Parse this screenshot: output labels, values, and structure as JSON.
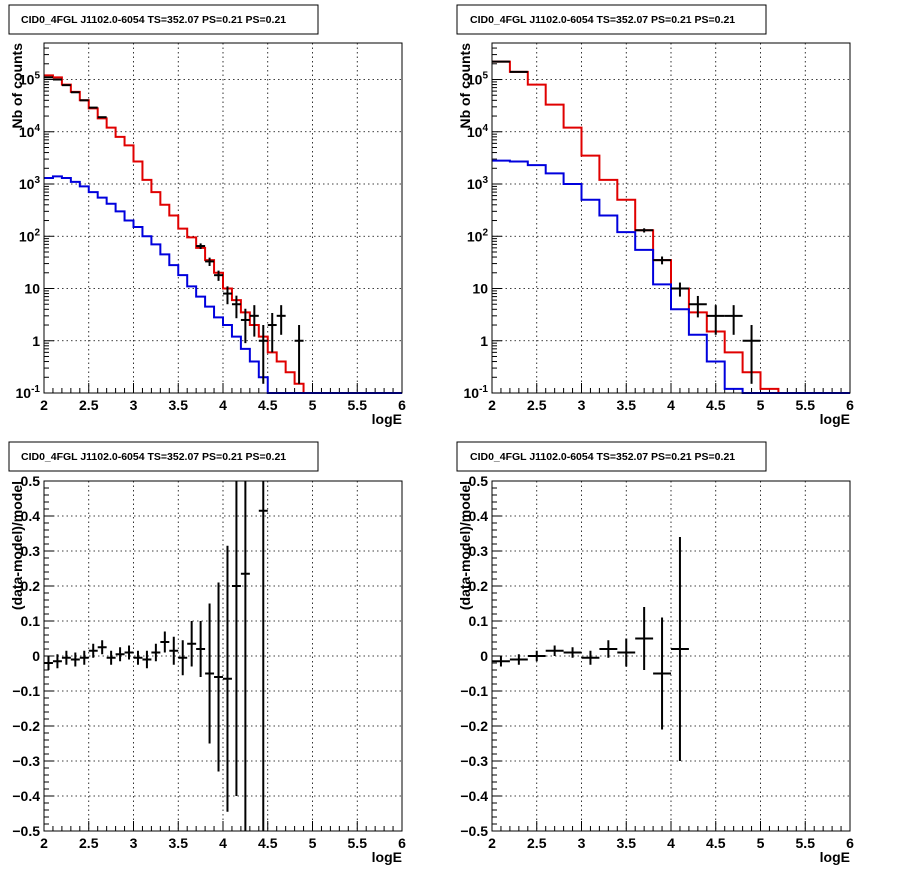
{
  "colors": {
    "data": "#000000",
    "total_model": "#e00000",
    "source_model": "#0000dd"
  },
  "chart_data": [
    {
      "type": "line",
      "id": "counts-fine",
      "title": "CID0_4FGL J1102.0-6054 TS=352.07 PS=0.21 PS=0.21",
      "xlabel": "logE",
      "ylabel": "Nb of counts",
      "xlim": [
        2,
        6
      ],
      "ylim": [
        0.1,
        500000
      ],
      "ylog": true,
      "grid": true,
      "x_ticks": [
        "2",
        "2.5",
        "3",
        "3.5",
        "4",
        "4.5",
        "5",
        "5.5",
        "6"
      ],
      "y_ticks": [
        {
          "v": 0.1,
          "label": "10",
          "exp": "-1"
        },
        {
          "v": 1,
          "label": "1",
          "exp": ""
        },
        {
          "v": 10,
          "label": "10",
          "exp": ""
        },
        {
          "v": 100,
          "label": "10",
          "exp": "2"
        },
        {
          "v": 1000,
          "label": "10",
          "exp": "3"
        },
        {
          "v": 10000,
          "label": "10",
          "exp": "4"
        },
        {
          "v": 100000,
          "label": "10",
          "exp": "5"
        }
      ],
      "bin_edges": [
        2.0,
        2.1,
        2.2,
        2.3,
        2.4,
        2.5,
        2.6,
        2.7,
        2.8,
        2.9,
        3.0,
        3.1,
        3.2,
        3.3,
        3.4,
        3.5,
        3.6,
        3.7,
        3.8,
        3.9,
        4.0,
        4.1,
        4.2,
        4.3,
        4.4,
        4.5,
        4.6,
        4.7,
        4.8,
        4.9,
        5.0,
        5.1,
        5.2,
        5.3,
        5.4,
        5.5,
        5.6,
        5.7,
        5.8,
        5.9,
        6.0
      ],
      "series": [
        {
          "name": "total model",
          "color": "#e00000",
          "values": [
            120000,
            110000,
            80000,
            58000,
            40000,
            28000,
            18000,
            12000,
            8000,
            5500,
            2700,
            1200,
            700,
            400,
            250,
            140,
            95,
            60,
            35,
            20,
            10,
            6,
            3.5,
            2,
            1.2,
            0.6,
            0.4,
            0.25,
            0.15,
            0.1,
            0.1,
            0.1,
            0.1,
            0.1,
            0.1,
            0.1,
            0.1,
            0.1,
            0.1,
            0.1
          ]
        },
        {
          "name": "source model",
          "color": "#0000dd",
          "values": [
            1300,
            1400,
            1300,
            1100,
            900,
            700,
            550,
            420,
            300,
            200,
            150,
            100,
            70,
            45,
            28,
            18,
            11,
            7,
            4.5,
            2.8,
            2,
            1.2,
            0.7,
            0.4,
            0.2,
            0.1,
            0.1,
            0.1,
            0.1,
            0.1,
            0.1,
            0.1,
            0.1,
            0.1,
            0.1,
            0.1,
            0.1,
            0.1,
            0.1,
            0.1
          ]
        }
      ],
      "points": [
        {
          "x": 2.05,
          "y": 110000,
          "dy_lo": 330,
          "dy_hi": 330,
          "dx": 0.05
        },
        {
          "x": 2.15,
          "y": 100000,
          "dy_lo": 320,
          "dy_hi": 320,
          "dx": 0.05
        },
        {
          "x": 2.25,
          "y": 78000,
          "dy_lo": 280,
          "dy_hi": 280,
          "dx": 0.05
        },
        {
          "x": 2.35,
          "y": 57000,
          "dy_lo": 240,
          "dy_hi": 240,
          "dx": 0.05
        },
        {
          "x": 2.45,
          "y": 40000,
          "dy_lo": 200,
          "dy_hi": 200,
          "dx": 0.05
        },
        {
          "x": 2.55,
          "y": 29000,
          "dy_lo": 170,
          "dy_hi": 170,
          "dx": 0.05
        },
        {
          "x": 2.65,
          "y": 19000,
          "dy_lo": 140,
          "dy_hi": 140,
          "dx": 0.05
        },
        {
          "x": 3.75,
          "y": 65,
          "dy_lo": 8,
          "dy_hi": 8,
          "dx": 0.05
        },
        {
          "x": 3.85,
          "y": 33,
          "dy_lo": 6,
          "dy_hi": 6,
          "dx": 0.05
        },
        {
          "x": 3.95,
          "y": 18,
          "dy_lo": 4,
          "dy_hi": 4,
          "dx": 0.05
        },
        {
          "x": 4.05,
          "y": 8,
          "dy_lo": 3,
          "dy_hi": 3,
          "dx": 0.05
        },
        {
          "x": 4.15,
          "y": 5,
          "dy_lo": 2.3,
          "dy_hi": 2.3,
          "dx": 0.05
        },
        {
          "x": 4.25,
          "y": 2.5,
          "dy_lo": 1.6,
          "dy_hi": 1.6,
          "dx": 0.05
        },
        {
          "x": 4.35,
          "y": 3,
          "dy_lo": 1.8,
          "dy_hi": 1.8,
          "dx": 0.05
        },
        {
          "x": 4.45,
          "y": 1,
          "dy_lo": 0.85,
          "dy_hi": 1.0,
          "dx": 0.05
        },
        {
          "x": 4.55,
          "y": 2,
          "dy_lo": 1.4,
          "dy_hi": 1.4,
          "dx": 0.05
        },
        {
          "x": 4.65,
          "y": 3,
          "dy_lo": 1.7,
          "dy_hi": 1.8,
          "dx": 0.05
        },
        {
          "x": 4.85,
          "y": 1,
          "dy_lo": 0.85,
          "dy_hi": 1.0,
          "dx": 0.05
        }
      ]
    },
    {
      "type": "line",
      "id": "counts-coarse",
      "title": "CID0_4FGL J1102.0-6054 TS=352.07 PS=0.21 PS=0.21",
      "xlabel": "logE",
      "ylabel": "Nb of counts",
      "xlim": [
        2,
        6
      ],
      "ylim": [
        0.1,
        500000
      ],
      "ylog": true,
      "grid": true,
      "x_ticks": [
        "2",
        "2.5",
        "3",
        "3.5",
        "4",
        "4.5",
        "5",
        "5.5",
        "6"
      ],
      "y_ticks": [
        {
          "v": 0.1,
          "label": "10",
          "exp": "-1"
        },
        {
          "v": 1,
          "label": "1",
          "exp": ""
        },
        {
          "v": 10,
          "label": "10",
          "exp": ""
        },
        {
          "v": 100,
          "label": "10",
          "exp": "2"
        },
        {
          "v": 1000,
          "label": "10",
          "exp": "3"
        },
        {
          "v": 10000,
          "label": "10",
          "exp": "4"
        },
        {
          "v": 100000,
          "label": "10",
          "exp": "5"
        }
      ],
      "bin_edges": [
        2.0,
        2.2,
        2.4,
        2.6,
        2.8,
        3.0,
        3.2,
        3.4,
        3.6,
        3.8,
        4.0,
        4.2,
        4.4,
        4.6,
        4.8,
        5.0,
        5.2,
        5.4,
        5.6,
        5.8,
        6.0
      ],
      "series": [
        {
          "name": "total model",
          "color": "#e00000",
          "values": [
            220000,
            140000,
            80000,
            33000,
            12000,
            3500,
            1200,
            500,
            130,
            35,
            10,
            3.5,
            1.5,
            0.6,
            0.25,
            0.12,
            0.1,
            0.1,
            0.1,
            0.1
          ]
        },
        {
          "name": "source model",
          "color": "#0000dd",
          "values": [
            2800,
            2700,
            2300,
            1600,
            1000,
            500,
            250,
            120,
            55,
            12,
            4,
            1.3,
            0.4,
            0.12,
            0.1,
            0.1,
            0.1,
            0.1,
            0.1,
            0.1
          ]
        }
      ],
      "points": [
        {
          "x": 2.1,
          "y": 220000,
          "dy_lo": 470,
          "dy_hi": 470,
          "dx": 0.1
        },
        {
          "x": 2.3,
          "y": 140000,
          "dy_lo": 370,
          "dy_hi": 370,
          "dx": 0.1
        },
        {
          "x": 3.7,
          "y": 130,
          "dy_lo": 12,
          "dy_hi": 12,
          "dx": 0.1
        },
        {
          "x": 3.9,
          "y": 35,
          "dy_lo": 6,
          "dy_hi": 6,
          "dx": 0.1
        },
        {
          "x": 4.1,
          "y": 10,
          "dy_lo": 3,
          "dy_hi": 3,
          "dx": 0.1
        },
        {
          "x": 4.3,
          "y": 5,
          "dy_lo": 2.2,
          "dy_hi": 2.2,
          "dx": 0.1
        },
        {
          "x": 4.5,
          "y": 3,
          "dy_lo": 1.7,
          "dy_hi": 1.8,
          "dx": 0.1
        },
        {
          "x": 4.7,
          "y": 3,
          "dy_lo": 1.7,
          "dy_hi": 1.8,
          "dx": 0.1
        },
        {
          "x": 4.9,
          "y": 1,
          "dy_lo": 0.85,
          "dy_hi": 1.0,
          "dx": 0.1
        }
      ]
    },
    {
      "type": "scatter",
      "id": "residual-fine",
      "title": "CID0_4FGL J1102.0-6054 TS=352.07 PS=0.21 PS=0.21",
      "xlabel": "logE",
      "ylabel": "(data-model)/model",
      "xlim": [
        2,
        6
      ],
      "ylim": [
        -0.5,
        0.5
      ],
      "ylog": false,
      "grid": true,
      "x_ticks": [
        "2",
        "2.5",
        "3",
        "3.5",
        "4",
        "4.5",
        "5",
        "5.5",
        "6"
      ],
      "y_ticks": [
        {
          "v": -0.5,
          "label": "−0.5",
          "exp": ""
        },
        {
          "v": -0.4,
          "label": "−0.4",
          "exp": ""
        },
        {
          "v": -0.3,
          "label": "−0.3",
          "exp": ""
        },
        {
          "v": -0.2,
          "label": "−0.2",
          "exp": ""
        },
        {
          "v": -0.1,
          "label": "−0.1",
          "exp": ""
        },
        {
          "v": 0,
          "label": "0",
          "exp": ""
        },
        {
          "v": 0.1,
          "label": "0.1",
          "exp": ""
        },
        {
          "v": 0.2,
          "label": "0.2",
          "exp": ""
        },
        {
          "v": 0.3,
          "label": "0.3",
          "exp": ""
        },
        {
          "v": 0.4,
          "label": "0.4",
          "exp": ""
        },
        {
          "v": 0.5,
          "label": "0.5",
          "exp": ""
        }
      ],
      "points": [
        {
          "x": 2.05,
          "y": -0.02,
          "dy_lo": 0.02,
          "dy_hi": 0.02,
          "dx": 0.05
        },
        {
          "x": 2.15,
          "y": -0.015,
          "dy_lo": 0.02,
          "dy_hi": 0.02,
          "dx": 0.05
        },
        {
          "x": 2.25,
          "y": -0.005,
          "dy_lo": 0.02,
          "dy_hi": 0.02,
          "dx": 0.05
        },
        {
          "x": 2.35,
          "y": -0.01,
          "dy_lo": 0.02,
          "dy_hi": 0.02,
          "dx": 0.05
        },
        {
          "x": 2.45,
          "y": -0.005,
          "dy_lo": 0.02,
          "dy_hi": 0.02,
          "dx": 0.05
        },
        {
          "x": 2.55,
          "y": 0.015,
          "dy_lo": 0.02,
          "dy_hi": 0.02,
          "dx": 0.05
        },
        {
          "x": 2.65,
          "y": 0.025,
          "dy_lo": 0.02,
          "dy_hi": 0.02,
          "dx": 0.05
        },
        {
          "x": 2.75,
          "y": -0.005,
          "dy_lo": 0.02,
          "dy_hi": 0.02,
          "dx": 0.05
        },
        {
          "x": 2.85,
          "y": 0.005,
          "dy_lo": 0.02,
          "dy_hi": 0.02,
          "dx": 0.05
        },
        {
          "x": 2.95,
          "y": 0.01,
          "dy_lo": 0.02,
          "dy_hi": 0.02,
          "dx": 0.05
        },
        {
          "x": 3.05,
          "y": -0.005,
          "dy_lo": 0.02,
          "dy_hi": 0.02,
          "dx": 0.05
        },
        {
          "x": 3.15,
          "y": -0.01,
          "dy_lo": 0.025,
          "dy_hi": 0.025,
          "dx": 0.05
        },
        {
          "x": 3.25,
          "y": 0.01,
          "dy_lo": 0.025,
          "dy_hi": 0.025,
          "dx": 0.05
        },
        {
          "x": 3.35,
          "y": 0.04,
          "dy_lo": 0.03,
          "dy_hi": 0.03,
          "dx": 0.05
        },
        {
          "x": 3.45,
          "y": 0.015,
          "dy_lo": 0.04,
          "dy_hi": 0.04,
          "dx": 0.05
        },
        {
          "x": 3.55,
          "y": -0.005,
          "dy_lo": 0.05,
          "dy_hi": 0.05,
          "dx": 0.05
        },
        {
          "x": 3.65,
          "y": 0.035,
          "dy_lo": 0.065,
          "dy_hi": 0.065,
          "dx": 0.05
        },
        {
          "x": 3.75,
          "y": 0.02,
          "dy_lo": 0.08,
          "dy_hi": 0.08,
          "dx": 0.05
        },
        {
          "x": 3.85,
          "y": -0.05,
          "dy_lo": 0.2,
          "dy_hi": 0.2,
          "dx": 0.05
        },
        {
          "x": 3.95,
          "y": -0.06,
          "dy_lo": 0.27,
          "dy_hi": 0.27,
          "dx": 0.05
        },
        {
          "x": 4.05,
          "y": -0.065,
          "dy_lo": 0.38,
          "dy_hi": 0.38,
          "dx": 0.05
        },
        {
          "x": 4.15,
          "y": 0.2,
          "dy_lo": 0.6,
          "dy_hi": 0.6,
          "dx": 0.05
        },
        {
          "x": 4.25,
          "y": 0.235,
          "dy_lo": 0.85,
          "dy_hi": 0.85,
          "dx": 0.05
        },
        {
          "x": 4.45,
          "y": 0.415,
          "dy_lo": 1.2,
          "dy_hi": 1.2,
          "dx": 0.05
        }
      ]
    },
    {
      "type": "scatter",
      "id": "residual-coarse",
      "title": "CID0_4FGL J1102.0-6054 TS=352.07 PS=0.21 PS=0.21",
      "xlabel": "logE",
      "ylabel": "(data-model)/model",
      "xlim": [
        2,
        6
      ],
      "ylim": [
        -0.5,
        0.5
      ],
      "ylog": false,
      "grid": true,
      "x_ticks": [
        "2",
        "2.5",
        "3",
        "3.5",
        "4",
        "4.5",
        "5",
        "5.5",
        "6"
      ],
      "y_ticks": [
        {
          "v": -0.5,
          "label": "−0.5",
          "exp": ""
        },
        {
          "v": -0.4,
          "label": "−0.4",
          "exp": ""
        },
        {
          "v": -0.3,
          "label": "−0.3",
          "exp": ""
        },
        {
          "v": -0.2,
          "label": "−0.2",
          "exp": ""
        },
        {
          "v": -0.1,
          "label": "−0.1",
          "exp": ""
        },
        {
          "v": 0,
          "label": "0",
          "exp": ""
        },
        {
          "v": 0.1,
          "label": "0.1",
          "exp": ""
        },
        {
          "v": 0.2,
          "label": "0.2",
          "exp": ""
        },
        {
          "v": 0.3,
          "label": "0.3",
          "exp": ""
        },
        {
          "v": 0.4,
          "label": "0.4",
          "exp": ""
        },
        {
          "v": 0.5,
          "label": "0.5",
          "exp": ""
        }
      ],
      "points": [
        {
          "x": 2.1,
          "y": -0.015,
          "dy_lo": 0.015,
          "dy_hi": 0.015,
          "dx": 0.1
        },
        {
          "x": 2.3,
          "y": -0.01,
          "dy_lo": 0.015,
          "dy_hi": 0.015,
          "dx": 0.1
        },
        {
          "x": 2.5,
          "y": 0.0,
          "dy_lo": 0.015,
          "dy_hi": 0.015,
          "dx": 0.1
        },
        {
          "x": 2.7,
          "y": 0.015,
          "dy_lo": 0.015,
          "dy_hi": 0.015,
          "dx": 0.1
        },
        {
          "x": 2.9,
          "y": 0.01,
          "dy_lo": 0.015,
          "dy_hi": 0.015,
          "dx": 0.1
        },
        {
          "x": 3.1,
          "y": -0.005,
          "dy_lo": 0.02,
          "dy_hi": 0.02,
          "dx": 0.1
        },
        {
          "x": 3.3,
          "y": 0.02,
          "dy_lo": 0.025,
          "dy_hi": 0.025,
          "dx": 0.1
        },
        {
          "x": 3.5,
          "y": 0.01,
          "dy_lo": 0.04,
          "dy_hi": 0.04,
          "dx": 0.1
        },
        {
          "x": 3.7,
          "y": 0.05,
          "dy_lo": 0.09,
          "dy_hi": 0.09,
          "dx": 0.1
        },
        {
          "x": 3.9,
          "y": -0.05,
          "dy_lo": 0.16,
          "dy_hi": 0.16,
          "dx": 0.1
        },
        {
          "x": 4.1,
          "y": 0.02,
          "dy_lo": 0.32,
          "dy_hi": 0.32,
          "dx": 0.1
        }
      ]
    }
  ]
}
